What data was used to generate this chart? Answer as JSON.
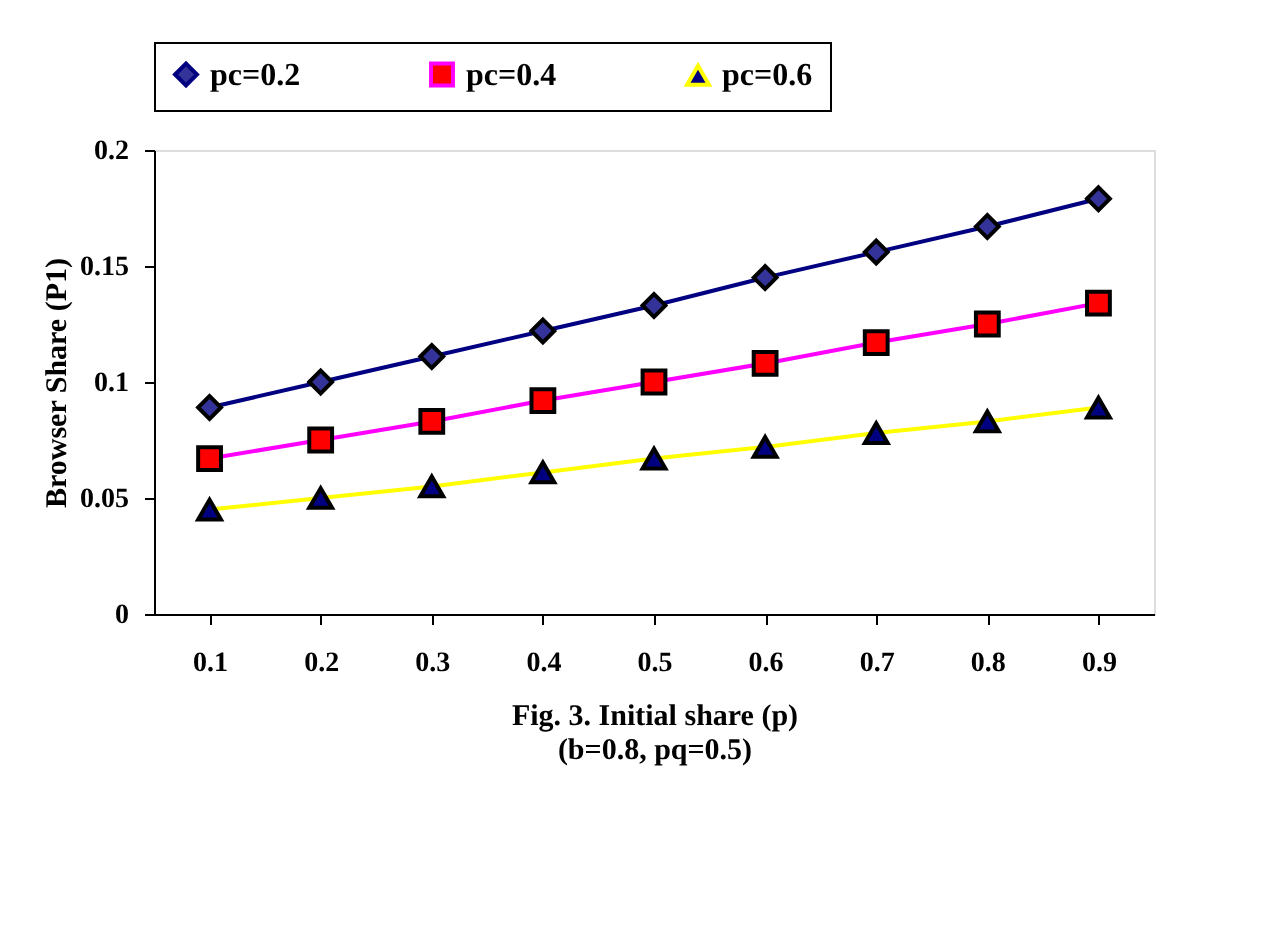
{
  "chart_data": {
    "type": "line",
    "categories": [
      "0.1",
      "0.2",
      "0.3",
      "0.4",
      "0.5",
      "0.6",
      "0.7",
      "0.8",
      "0.9"
    ],
    "series": [
      {
        "name": "pc=0.2",
        "color": "#000080",
        "marker": "diamond",
        "values": [
          0.089,
          0.1,
          0.111,
          0.122,
          0.133,
          0.145,
          0.156,
          0.167,
          0.179
        ]
      },
      {
        "name": "pc=0.4",
        "color": "#ff00ff",
        "marker": "square",
        "values": [
          0.067,
          0.075,
          0.083,
          0.092,
          0.1,
          0.108,
          0.117,
          0.125,
          0.134
        ]
      },
      {
        "name": "pc=0.6",
        "color": "#ffff00",
        "marker": "triangle",
        "values": [
          0.045,
          0.05,
          0.055,
          0.061,
          0.067,
          0.072,
          0.078,
          0.083,
          0.089
        ]
      }
    ],
    "ylim": [
      0,
      0.2
    ],
    "yticks": [
      0,
      0.05,
      0.1,
      0.15,
      0.2
    ],
    "xlabel": "Fig. 3. Initial share (p)",
    "ylabel": "Browser Share (P1)",
    "annotations": [
      "(b=0.8, pq=0.5)"
    ],
    "legend": "top",
    "grid": false,
    "line_style": "solid"
  }
}
